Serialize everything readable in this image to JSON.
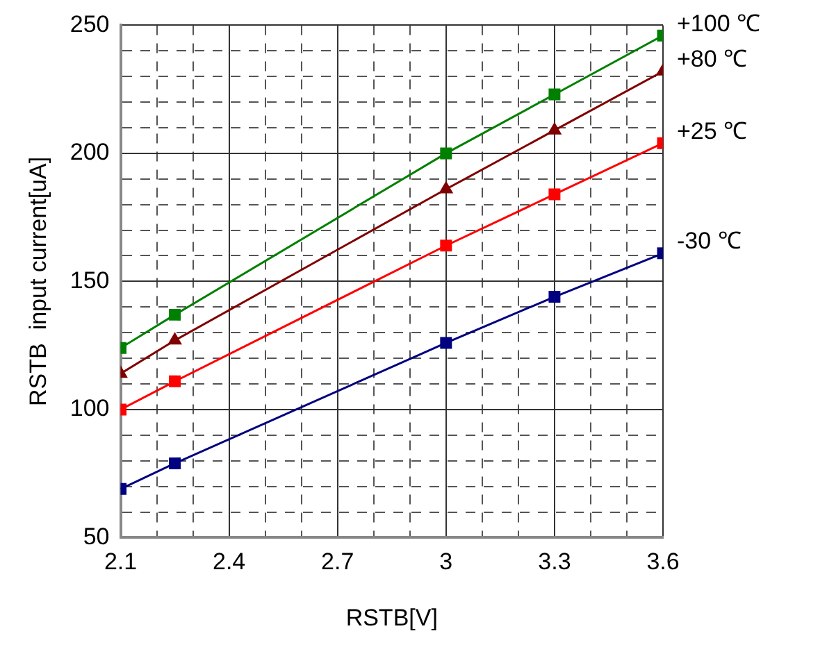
{
  "chart_data": {
    "type": "line",
    "xlabel": "RSTB[V]",
    "ylabel": "RSTB  input current[uA]",
    "x": [
      2.1,
      2.25,
      3.0,
      3.3,
      3.6
    ],
    "series": [
      {
        "name": "+100 ℃",
        "color": "#008000",
        "marker": "square",
        "values": [
          124,
          137,
          200,
          223,
          246
        ]
      },
      {
        "name": "+80 ℃",
        "color": "#800000",
        "marker": "triangle",
        "values": [
          114,
          127,
          186,
          209,
          232
        ]
      },
      {
        "name": "+25 ℃",
        "color": "#ff0000",
        "marker": "square",
        "values": [
          100,
          111,
          164,
          184,
          204
        ]
      },
      {
        "name": "-30 ℃",
        "color": "#000080",
        "marker": "square",
        "values": [
          69,
          79,
          126,
          144,
          161
        ]
      }
    ],
    "xlim": [
      2.1,
      3.6
    ],
    "xticks": [
      2.1,
      {
        "value": 2.2,
        "label": null
      },
      {
        "value": 2.3,
        "label": null
      },
      2.4,
      {
        "value": 2.5,
        "label": null
      },
      {
        "value": 2.6,
        "label": null
      },
      2.7,
      {
        "value": 2.8,
        "label": null
      },
      {
        "value": 2.9,
        "label": null
      },
      3,
      {
        "value": 3.1,
        "label": null
      },
      {
        "value": 3.2,
        "label": null
      },
      3.3,
      {
        "value": 3.4,
        "label": null
      },
      {
        "value": 3.5,
        "label": null
      },
      3.6
    ],
    "ylim": [
      50,
      250
    ],
    "yticks": [
      50,
      {
        "value": 60,
        "label": null
      },
      {
        "value": 70,
        "label": null
      },
      {
        "value": 80,
        "label": null
      },
      {
        "value": 90,
        "label": null
      },
      100,
      {
        "value": 110,
        "label": null
      },
      {
        "value": 120,
        "label": null
      },
      {
        "value": 130,
        "label": null
      },
      {
        "value": 140,
        "label": null
      },
      150,
      {
        "value": 160,
        "label": null
      },
      {
        "value": 170,
        "label": null
      },
      {
        "value": 180,
        "label": null
      },
      {
        "value": 190,
        "label": null
      },
      200,
      {
        "value": 210,
        "label": null
      },
      {
        "value": 220,
        "label": null
      },
      {
        "value": 230,
        "label": null
      },
      {
        "value": 240,
        "label": null
      },
      250
    ],
    "grid": true,
    "legend": false,
    "line_style": "solid"
  }
}
